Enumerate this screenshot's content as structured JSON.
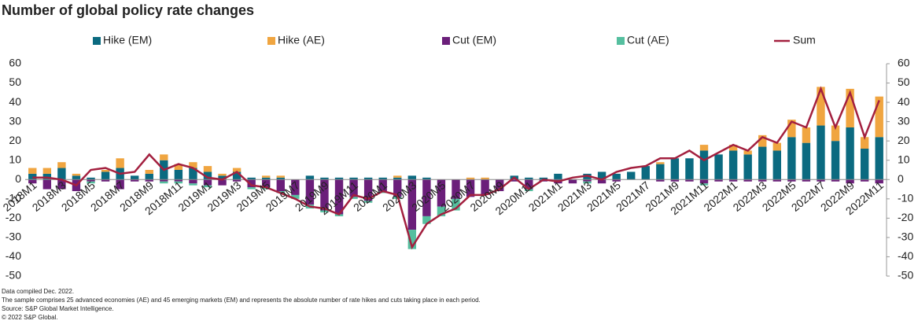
{
  "chart_data": {
    "type": "stacked_bar_line",
    "title": "Number of global policy rate changes",
    "legend": "top",
    "categories": [
      "2018M1",
      null,
      "2018M3",
      null,
      "2018M5",
      null,
      "2018M7",
      null,
      "2018M9",
      null,
      "2018M11",
      null,
      "2019M1",
      null,
      "2019M3",
      null,
      "2019M5",
      null,
      "2019M7",
      null,
      "2019M9",
      null,
      "2019M11",
      null,
      "2020M1",
      null,
      "2020M3",
      null,
      "2020M5",
      null,
      "2020M7",
      null,
      "2020M9",
      null,
      "2020M11",
      null,
      "2021M1",
      null,
      "2021M3",
      null,
      "2021M5",
      null,
      "2021M7",
      null,
      "2021M9",
      null,
      "2021M11",
      null,
      "2022M1",
      null,
      "2022M3",
      null,
      "2022M5",
      null,
      "2022M7",
      null,
      "2022M9",
      null,
      "2022M11"
    ],
    "series": [
      {
        "name": "Hike (EM)",
        "color": "#0b6a80",
        "values": [
          3,
          3,
          6,
          2,
          1,
          4,
          6,
          2,
          3,
          10,
          5,
          6,
          4,
          2,
          4,
          1,
          1,
          1,
          0,
          2,
          1,
          1,
          1,
          1,
          1,
          1,
          2,
          1,
          0,
          0,
          0,
          0,
          0,
          2,
          1,
          1,
          3,
          0,
          3,
          4,
          3,
          4,
          7,
          8,
          11,
          11,
          15,
          13,
          15,
          13,
          17,
          15,
          22,
          19,
          28,
          20,
          27,
          16,
          22
        ]
      },
      {
        "name": "Hike (AE)",
        "color": "#f0a540",
        "values": [
          3,
          3,
          3,
          1,
          0,
          1,
          5,
          0,
          2,
          3,
          3,
          3,
          3,
          1,
          2,
          0,
          1,
          1,
          0,
          0,
          0,
          0,
          0,
          0,
          0,
          1,
          0,
          0,
          0,
          0,
          1,
          1,
          0,
          0,
          0,
          0,
          0,
          0,
          0,
          0,
          0,
          0,
          0,
          1,
          0,
          0,
          3,
          0,
          3,
          2,
          6,
          4,
          9,
          8,
          20,
          8,
          20,
          6,
          21
        ]
      },
      {
        "name": "Cut (EM)",
        "color": "#6b1f7a",
        "values": [
          -2,
          -5,
          -5,
          -6,
          -1,
          -1,
          -5,
          -1,
          -1,
          -1,
          -1,
          -2,
          -3,
          -3,
          -1,
          -4,
          -4,
          -6,
          -8,
          -13,
          -16,
          -18,
          -9,
          -11,
          -6,
          -9,
          -26,
          -19,
          -14,
          -10,
          -9,
          -8,
          -6,
          -1,
          -5,
          -1,
          -2,
          -2,
          -1,
          -2,
          -1,
          0,
          0,
          -1,
          -1,
          -1,
          -2,
          -1,
          -1,
          -1,
          -1,
          -1,
          -1,
          -1,
          -1,
          -1,
          -2,
          -1,
          -2
        ]
      },
      {
        "name": "Cut (AE)",
        "color": "#55bf9f",
        "values": [
          0,
          0,
          0,
          0,
          -1,
          0,
          0,
          0,
          0,
          -1,
          -1,
          -1,
          -1,
          0,
          0,
          -1,
          -1,
          -1,
          -2,
          -2,
          -1,
          -1,
          -1,
          -1,
          -1,
          -1,
          -10,
          -4,
          -5,
          -6,
          0,
          0,
          0,
          0,
          -1,
          0,
          0,
          0,
          -1,
          0,
          0,
          0,
          0,
          0,
          0,
          0,
          -1,
          0,
          0,
          0,
          0,
          0,
          0,
          0,
          0,
          0,
          0,
          0,
          0
        ]
      },
      {
        "name": "Sum",
        "color": "#a3203f",
        "type": "line",
        "values": [
          1,
          1,
          0,
          -3,
          5,
          6,
          3,
          4,
          13,
          5,
          8,
          6,
          1,
          0,
          4,
          -3,
          -4,
          -7,
          -10,
          -14,
          -15,
          -18,
          -8,
          -10,
          -6,
          -8,
          -35,
          -23,
          -18,
          -15,
          -8,
          -8,
          -5,
          1,
          -5,
          0,
          -1,
          1,
          2,
          0,
          4,
          6,
          7,
          11,
          11,
          15,
          10,
          14,
          18,
          15,
          22,
          19,
          30,
          27,
          47,
          27,
          45,
          22,
          41
        ]
      }
    ],
    "ylim": [
      -50,
      60
    ],
    "yticks": [
      -50,
      -40,
      -30,
      -20,
      -10,
      0,
      10,
      20,
      30,
      40,
      50,
      60
    ],
    "y2lim": [
      -50,
      60
    ],
    "y2ticks": [
      -50,
      -40,
      -30,
      -20,
      -10,
      0,
      10,
      20,
      30,
      40,
      50,
      60
    ],
    "notes": [
      "Data compiled Dec. 2022.",
      "The sample comprises 25 advanced economies (AE) and 45 emerging markets (EM) and represents the absolute number of rate hikes and cuts taking place in each period.",
      "Source: S&P Global Market Intelligence.",
      "© 2022 S&P Global."
    ]
  }
}
